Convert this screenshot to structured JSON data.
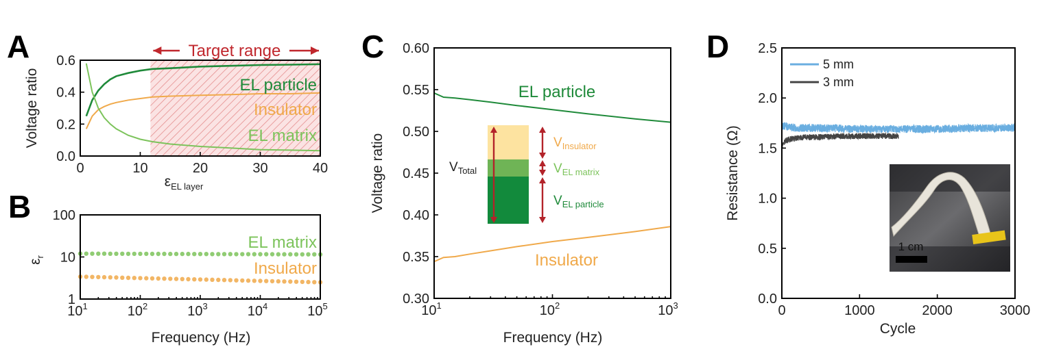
{
  "colors": {
    "el_particle": "#1f8a3a",
    "el_matrix": "#7cc35b",
    "insulator": "#f0a94a",
    "target": "#c0272d",
    "series_5mm": "#6aaee0",
    "series_3mm": "#444444",
    "diag_insulator_fill": "#fde3a0",
    "diag_matrix_fill": "#6fb456",
    "diag_particle_fill": "#128a3c"
  },
  "chart_data": [
    {
      "panel": "A",
      "type": "line",
      "xlabel": "ε",
      "xlabel_sub": "EL layer",
      "ylabel": "Voltage ratio",
      "xlim": [
        0,
        40
      ],
      "ylim": [
        0,
        0.6
      ],
      "xticks": [
        "0",
        "10",
        "20",
        "30",
        "40"
      ],
      "yticks": [
        "0.0",
        "0.2",
        "0.4",
        "0.6"
      ],
      "target_range": {
        "label": "Target range",
        "from": 11.7,
        "to": 40
      },
      "series": [
        {
          "name": "EL particle",
          "x": [
            1,
            2,
            3,
            4,
            5,
            6,
            8,
            10,
            12,
            15,
            20,
            25,
            30,
            35,
            40
          ],
          "y": [
            0.25,
            0.35,
            0.41,
            0.45,
            0.48,
            0.5,
            0.52,
            0.535,
            0.545,
            0.55,
            0.56,
            0.565,
            0.57,
            0.572,
            0.575
          ]
        },
        {
          "name": "Insulator",
          "x": [
            1,
            2,
            3,
            4,
            5,
            6,
            8,
            10,
            12,
            15,
            20,
            25,
            30,
            35,
            40
          ],
          "y": [
            0.17,
            0.25,
            0.29,
            0.31,
            0.325,
            0.335,
            0.35,
            0.36,
            0.37,
            0.375,
            0.38,
            0.385,
            0.39,
            0.39,
            0.395
          ]
        },
        {
          "name": "EL matrix",
          "x": [
            1,
            2,
            3,
            4,
            5,
            6,
            8,
            10,
            12,
            15,
            20,
            25,
            30,
            35,
            40
          ],
          "y": [
            0.58,
            0.4,
            0.3,
            0.24,
            0.2,
            0.17,
            0.13,
            0.105,
            0.09,
            0.075,
            0.06,
            0.05,
            0.04,
            0.037,
            0.033
          ]
        }
      ]
    },
    {
      "panel": "B",
      "type": "scatter",
      "xlabel": "Frequency (Hz)",
      "ylabel": "ε",
      "ylabel_sub": "r",
      "xscale": "log",
      "yscale": "log",
      "xlim": [
        10,
        100000
      ],
      "ylim": [
        1,
        100
      ],
      "xticks": [
        {
          "b": "10",
          "e": "1"
        },
        {
          "b": "10",
          "e": "2"
        },
        {
          "b": "10",
          "e": "3"
        },
        {
          "b": "10",
          "e": "4"
        },
        {
          "b": "10",
          "e": "5"
        }
      ],
      "yticks": [
        "1",
        "10",
        "100"
      ],
      "series": [
        {
          "name": "EL matrix",
          "start": 12,
          "end": 11.5
        },
        {
          "name": "Insulator",
          "start": 3.4,
          "end": 2.5
        }
      ]
    },
    {
      "panel": "C",
      "type": "line",
      "xlabel": "Frequency (Hz)",
      "ylabel": "Voltage ratio",
      "xscale": "log",
      "xlim": [
        10,
        1000
      ],
      "ylim": [
        0.3,
        0.6
      ],
      "xticks": [
        {
          "b": "10",
          "e": "1"
        },
        {
          "b": "10",
          "e": "2"
        },
        {
          "b": "10",
          "e": "3"
        }
      ],
      "yticks": [
        "0.30",
        "0.35",
        "0.40",
        "0.45",
        "0.50",
        "0.55",
        "0.60"
      ],
      "series": [
        {
          "name": "EL particle",
          "x": [
            10,
            12,
            15,
            20,
            30,
            50,
            100,
            200,
            500,
            1000
          ],
          "y": [
            0.546,
            0.541,
            0.54,
            0.538,
            0.535,
            0.531,
            0.526,
            0.521,
            0.515,
            0.511
          ]
        },
        {
          "name": "Insulator",
          "x": [
            10,
            12,
            15,
            20,
            30,
            50,
            100,
            200,
            500,
            1000
          ],
          "y": [
            0.344,
            0.349,
            0.35,
            0.353,
            0.357,
            0.362,
            0.368,
            0.373,
            0.38,
            0.386
          ]
        }
      ],
      "inset": {
        "total": {
          "v": "V",
          "sub": "Total"
        },
        "layers": [
          {
            "v": "V",
            "sub": "Insulator"
          },
          {
            "v": "V",
            "sub": "EL matrix"
          },
          {
            "v": "V",
            "sub": "EL particle"
          }
        ]
      }
    },
    {
      "panel": "D",
      "type": "line",
      "xlabel": "Cycle",
      "ylabel": "Resistance (Ω)",
      "xlim": [
        0,
        3000
      ],
      "ylim": [
        0,
        2.5
      ],
      "xticks": [
        "0",
        "1000",
        "2000",
        "3000"
      ],
      "yticks": [
        "0.0",
        "0.5",
        "1.0",
        "1.5",
        "2.0",
        "2.5"
      ],
      "series": [
        {
          "name": "5 mm",
          "x": [
            0,
            50,
            100,
            200,
            500,
            1000,
            1500,
            2000,
            2500,
            3000
          ],
          "y": [
            1.72,
            1.72,
            1.71,
            1.7,
            1.7,
            1.69,
            1.69,
            1.69,
            1.7,
            1.7
          ],
          "noise": 0.04
        },
        {
          "name": "3 mm",
          "x": [
            0,
            30,
            60,
            100,
            200,
            300,
            500,
            800,
            1000,
            1500
          ],
          "y": [
            1.52,
            1.56,
            1.58,
            1.59,
            1.6,
            1.61,
            1.61,
            1.62,
            1.62,
            1.62
          ],
          "noise": 0.03
        }
      ],
      "inset_scale_label": "1 cm"
    }
  ]
}
